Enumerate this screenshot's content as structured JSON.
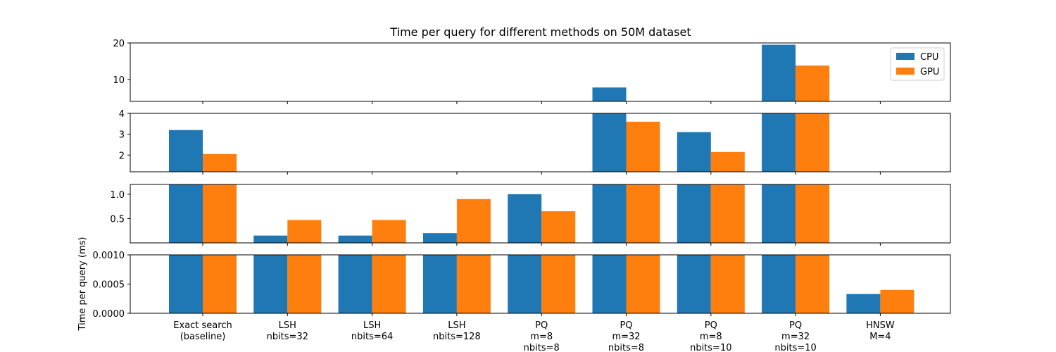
{
  "chart_data": {
    "type": "bar",
    "title": "Time per query for different methods on 50M dataset",
    "ylabel": "Time per query (ms)",
    "xlabel": "",
    "categories": [
      [
        "Exact search",
        "(baseline)"
      ],
      [
        "LSH",
        "nbits=32"
      ],
      [
        "LSH",
        "nbits=64"
      ],
      [
        "LSH",
        "nbits=128"
      ],
      [
        "PQ",
        "m=8",
        "nbits=8"
      ],
      [
        "PQ",
        "m=32",
        "nbits=8"
      ],
      [
        "PQ",
        "m=8",
        "nbits=10"
      ],
      [
        "PQ",
        "m=32",
        "nbits=10"
      ],
      [
        "HNSW",
        "M=4"
      ]
    ],
    "series": [
      {
        "name": "CPU",
        "color": "#1f77b4",
        "values": [
          3.2,
          0.15,
          0.15,
          0.2,
          1.0,
          7.8,
          3.1,
          19.5,
          0.00033
        ]
      },
      {
        "name": "GPU",
        "color": "#ff7f0e",
        "values": [
          2.05,
          0.47,
          0.47,
          0.9,
          0.65,
          3.6,
          2.15,
          13.8,
          0.0004
        ]
      }
    ],
    "broken_axis_panels": [
      {
        "ylim": [
          4,
          20
        ],
        "ticks": [
          10,
          20
        ],
        "tick_labels": [
          "10",
          "20"
        ]
      },
      {
        "ylim": [
          1.2,
          4
        ],
        "ticks": [
          2,
          3,
          4
        ],
        "tick_labels": [
          "2",
          "3",
          "4"
        ]
      },
      {
        "ylim": [
          0,
          1.2
        ],
        "ticks": [
          0.5,
          1.0
        ],
        "tick_labels": [
          "0.5",
          "1.0"
        ]
      },
      {
        "ylim": [
          0,
          0.001
        ],
        "ticks": [
          0,
          0.0005,
          0.001
        ],
        "tick_labels": [
          "0.0000",
          "0.0005",
          "0.0010"
        ]
      }
    ],
    "legend_position": "top-right",
    "grid": false
  }
}
